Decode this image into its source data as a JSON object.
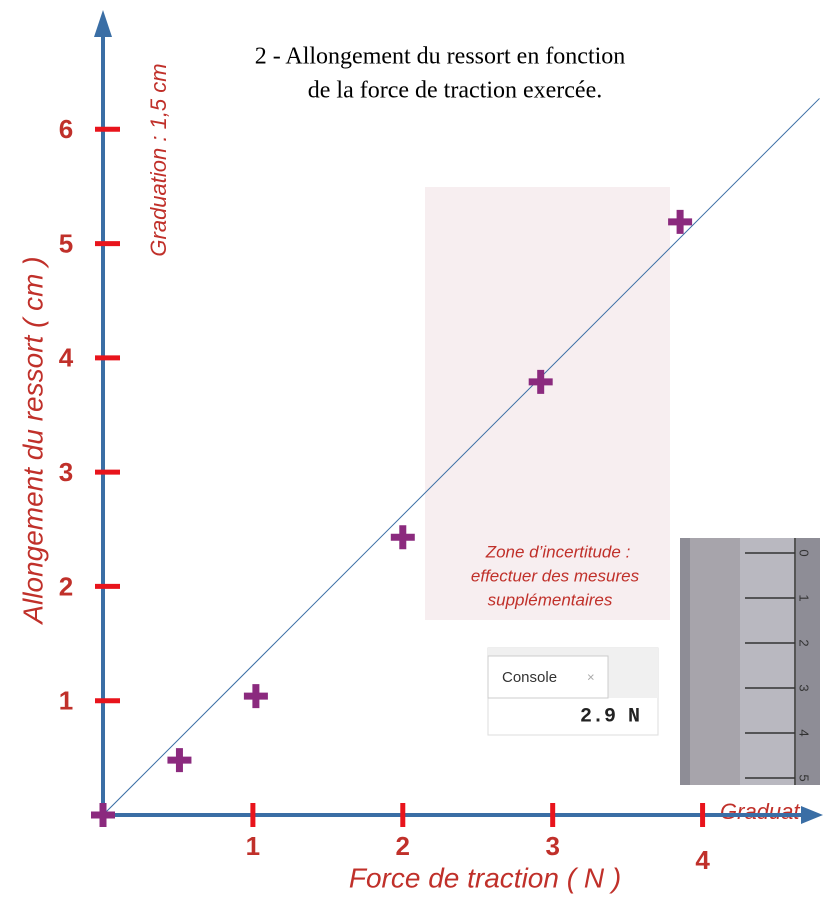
{
  "chart_data": {
    "type": "scatter",
    "title_lines": [
      "2 - Allongement du ressort en fonction",
      "de la force de traction exercée."
    ],
    "x_label": "Force de traction ( N )",
    "y_label": "Allongement du ressort ( cm )",
    "y_annotation": "Graduation : 1,5 cm",
    "x_annotation": "Graduat",
    "zone_lines": [
      "Zone d’incertitude :",
      "effectuer des mesures",
      "supplémentaires"
    ],
    "console": {
      "tab": "Console",
      "value": "2.9 N"
    },
    "ruler_labels": [
      "0",
      "1",
      "2",
      "3",
      "4",
      "5"
    ],
    "xlim": [
      0,
      4.75
    ],
    "ylim": [
      0,
      7.0
    ],
    "xticks": [
      1,
      2,
      3,
      4
    ],
    "yticks": [
      1,
      2,
      3,
      4,
      5,
      6
    ],
    "series": [
      {
        "color": "#8b2a7e",
        "x": [
          0,
          0.51,
          1.02,
          2.0,
          2.92,
          3.85
        ],
        "values": [
          0,
          0.48,
          1.04,
          2.43,
          3.79,
          5.19
        ]
      }
    ],
    "fit_line": {
      "color": "#3a6ea5",
      "x": [
        0,
        4.78
      ],
      "y": [
        0,
        6.27
      ]
    }
  }
}
